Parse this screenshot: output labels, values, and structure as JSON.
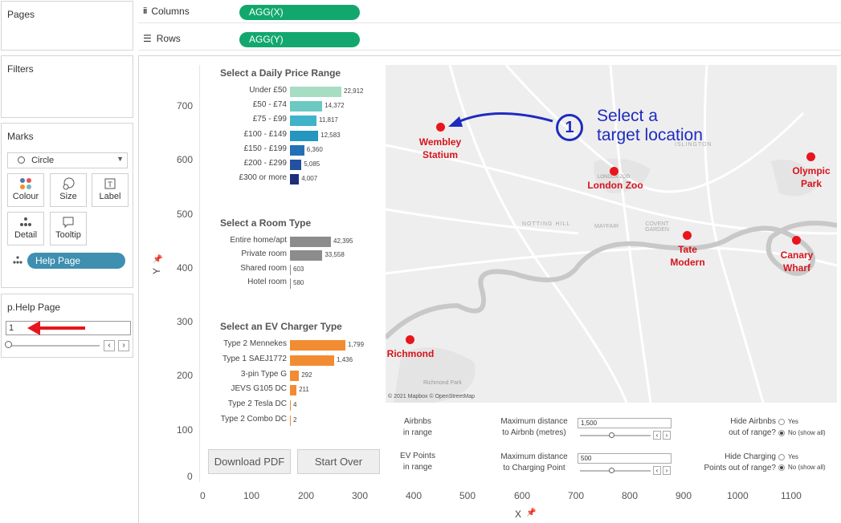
{
  "left_panels": {
    "pages_title": "Pages",
    "filters_title": "Filters",
    "marks_title": "Marks",
    "mark_type": "Circle",
    "mark_buttons": [
      "Colour",
      "Size",
      "Label",
      "Detail",
      "Tooltip"
    ],
    "detail_pill": "Help Page",
    "param_title": "p.Help Page",
    "param_value": "1"
  },
  "shelves": {
    "columns_label": "Columns",
    "columns_pill": "AGG(X)",
    "rows_label": "Rows",
    "rows_pill": "AGG(Y)"
  },
  "axes": {
    "y_title": "Y",
    "x_title": "X",
    "y_ticks": [
      "700",
      "600",
      "500",
      "400",
      "300",
      "200",
      "100",
      "0"
    ],
    "x_ticks": [
      "0",
      "100",
      "200",
      "300",
      "400",
      "500",
      "600",
      "700",
      "800",
      "900",
      "1000",
      "1100"
    ]
  },
  "price": {
    "title": "Select a Daily Price Range",
    "rows": [
      {
        "label": "Under £50",
        "value": 22912,
        "display": "22,912",
        "color": "#a6ddc3"
      },
      {
        "label": "£50 - £74",
        "value": 14372,
        "display": "14,372",
        "color": "#6cc9c2"
      },
      {
        "label": "£75 - £99",
        "value": 11817,
        "display": "11,817",
        "color": "#3fb3c7"
      },
      {
        "label": "£100 - £149",
        "value": 12583,
        "display": "12,583",
        "color": "#2496bf"
      },
      {
        "label": "£150 - £199",
        "value": 6360,
        "display": "6,360",
        "color": "#2370b6"
      },
      {
        "label": "£200 - £299",
        "value": 5085,
        "display": "5,085",
        "color": "#23509f"
      },
      {
        "label": "£300 or more",
        "value": 4007,
        "display": "4,007",
        "color": "#1d2f78"
      }
    ]
  },
  "room": {
    "title": "Select a Room Type",
    "rows": [
      {
        "label": "Entire home/apt",
        "value": 42395,
        "display": "42,395",
        "color": "#8c8c8c"
      },
      {
        "label": "Private room",
        "value": 33558,
        "display": "33,558",
        "color": "#8c8c8c"
      },
      {
        "label": "Shared room",
        "value": 603,
        "display": "603",
        "color": "#8c8c8c"
      },
      {
        "label": "Hotel room",
        "value": 580,
        "display": "580",
        "color": "#8c8c8c"
      }
    ]
  },
  "ev": {
    "title": "Select an EV Charger Type",
    "rows": [
      {
        "label": "Type 2 Mennekes",
        "value": 1799,
        "display": "1,799",
        "color": "#f28c32"
      },
      {
        "label": "Type 1 SAEJ1772",
        "value": 1436,
        "display": "1,436",
        "color": "#f28c32"
      },
      {
        "label": "3-pin Type G",
        "value": 292,
        "display": "292",
        "color": "#f28c32"
      },
      {
        "label": "JEVS G105 DC",
        "value": 211,
        "display": "211",
        "color": "#f28c32"
      },
      {
        "label": "Type 2 Tesla DC",
        "value": 4,
        "display": "4",
        "color": "#f28c32"
      },
      {
        "label": "Type 2 Combo DC",
        "value": 2,
        "display": "2",
        "color": "#f28c32"
      }
    ]
  },
  "map": {
    "attribution": "© 2021 Mapbox © OpenStreetMap",
    "callout_number": "1",
    "callout_line1": "Select a",
    "callout_line2": "target location",
    "locations": [
      {
        "name1": "Wembley",
        "name2": "Statium"
      },
      {
        "name1": "London Zoo",
        "name2": ""
      },
      {
        "name1": "Olympic",
        "name2": "Park"
      },
      {
        "name1": "Tate",
        "name2": "Modern"
      },
      {
        "name1": "Canary",
        "name2": "Wharf"
      },
      {
        "name1": "Richmond",
        "name2": ""
      }
    ],
    "basemap_labels": [
      "LONDON ZOO",
      "ISLINGTON",
      "NOTTING HILL",
      "COVENT GARDEN",
      "MAYFAIR",
      "Richmond Park"
    ]
  },
  "controls": {
    "airbnbs_in_range_1": "Airbnbs",
    "airbnbs_in_range_2": "in range",
    "ev_in_range_1": "EV Points",
    "ev_in_range_2": "in range",
    "max_airbnb_1": "Maximum distance",
    "max_airbnb_2": "to Airbnb (metres)",
    "max_airbnb_value": "1,500",
    "max_charging_1": "Maximum distance",
    "max_charging_2": "to Charging Point",
    "max_charging_value": "500",
    "hide_airbnb_1": "Hide Airbnbs",
    "hide_airbnb_2": "out of range?",
    "hide_charging_1": "Hide Charging",
    "hide_charging_2": "Points out of range?",
    "yes": "Yes",
    "no_show_all": "No (show all)"
  },
  "buttons": {
    "download": "Download PDF",
    "start_over": "Start Over"
  }
}
